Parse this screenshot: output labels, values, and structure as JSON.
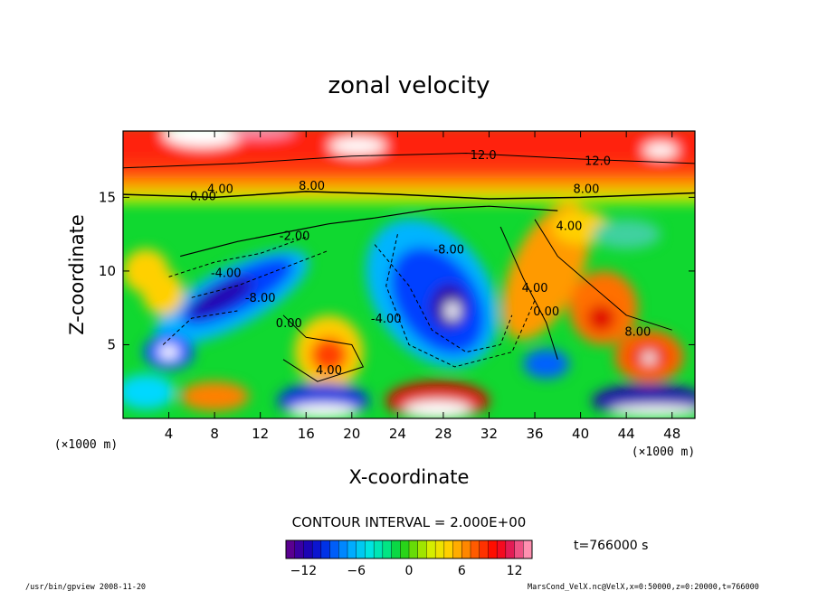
{
  "chart_data": {
    "type": "heatmap",
    "title": "zonal velocity",
    "xlabel": "X-coordinate",
    "ylabel": "Z-coordinate",
    "x_unit": "(×1000 m)",
    "y_unit": "(×1000 m)",
    "xlim": [
      0,
      50
    ],
    "ylim": [
      0,
      19.5
    ],
    "x_ticks": [
      4,
      8,
      12,
      16,
      20,
      24,
      28,
      32,
      36,
      40,
      44,
      48
    ],
    "y_ticks": [
      5,
      10,
      15
    ],
    "contour_interval_label": "CONTOUR INTERVAL = 2.000E+00",
    "colorbar": {
      "range": [
        -14,
        14
      ],
      "ticks": [
        -12,
        -6,
        0,
        6,
        12
      ],
      "colors": [
        "#5a0090",
        "#2000b0",
        "#0020e0",
        "#0070ff",
        "#00b4ff",
        "#00e4e0",
        "#00e890",
        "#10d020",
        "#80e000",
        "#e0f000",
        "#ffd000",
        "#ff9000",
        "#ff4000",
        "#ff0000",
        "#e02060",
        "#ff90b0"
      ]
    },
    "contour_labels": [
      {
        "text": "12.0",
        "x": 31.5,
        "z": 17.6
      },
      {
        "text": "12.0",
        "x": 41.5,
        "z": 17.2
      },
      {
        "text": "8.00",
        "x": 16.5,
        "z": 15.5
      },
      {
        "text": "8.00",
        "x": 40.5,
        "z": 15.3
      },
      {
        "text": "4.00",
        "x": 8.5,
        "z": 15.3
      },
      {
        "text": "0.00",
        "x": 7.0,
        "z": 14.8
      },
      {
        "text": "4.00",
        "x": 39.0,
        "z": 12.8
      },
      {
        "text": "-2.00",
        "x": 15.0,
        "z": 12.1
      },
      {
        "text": "-8.00",
        "x": 28.5,
        "z": 11.2
      },
      {
        "text": "-4.00",
        "x": 9.0,
        "z": 9.6
      },
      {
        "text": "-8.00",
        "x": 12.0,
        "z": 7.9
      },
      {
        "text": "4.00",
        "x": 36.0,
        "z": 8.6
      },
      {
        "text": "0.00",
        "x": 37.0,
        "z": 7.0
      },
      {
        "text": "0.00",
        "x": 14.5,
        "z": 6.2
      },
      {
        "text": "-4.00",
        "x": 23.0,
        "z": 6.5
      },
      {
        "text": "8.00",
        "x": 45.0,
        "z": 5.6
      },
      {
        "text": "4.00",
        "x": 18.0,
        "z": 3.0
      }
    ]
  },
  "time_label": "t=766000 s",
  "footer": {
    "left": "/usr/bin/gpview   2008-11-20",
    "right": "MarsCond_VelX.nc@VelX,x=0:50000,z=0:20000,t=766000"
  }
}
